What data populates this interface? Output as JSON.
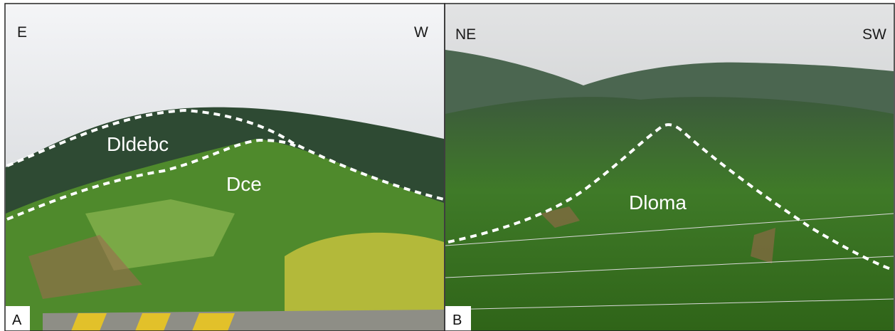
{
  "panels": [
    {
      "label": "A",
      "left_direction": "E",
      "right_direction": "W",
      "units": [
        "Dldebc",
        "Dce"
      ]
    },
    {
      "label": "B",
      "left_direction": "NE",
      "right_direction": "SW",
      "units": [
        "Dloma"
      ]
    }
  ]
}
